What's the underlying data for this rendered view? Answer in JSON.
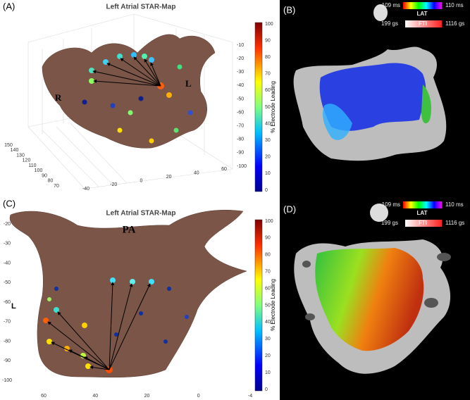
{
  "panels": [
    {
      "label": "(A)",
      "title": "Left Atrial STAR-Map",
      "orientation_labels": [
        "R",
        "L"
      ],
      "colorbar": {
        "label": "% Electrode Leading",
        "ticks": [
          100,
          90,
          80,
          70,
          60,
          50,
          40,
          30,
          20,
          10,
          0
        ]
      },
      "axis_ticks": {
        "vertical": [
          "-10",
          "-20",
          "-30",
          "-40",
          "-50",
          "-60",
          "-70",
          "-80",
          "-90",
          "-100"
        ],
        "depth": [
          "150",
          "140",
          "130",
          "120",
          "110",
          "100",
          "90",
          "80",
          "70"
        ],
        "horizontal": [
          "-40",
          "-20",
          "0",
          "20",
          "40",
          "60"
        ]
      }
    },
    {
      "label": "(B)",
      "lat": {
        "min": "-109 ms",
        "name": "LAT",
        "max": "110 ms"
      },
      "fti": {
        "min": "199 gs",
        "name": "FTI",
        "max": "1116 gs"
      }
    },
    {
      "label": "(C)",
      "title": "Left Atrial STAR-Map",
      "orientation_labels": [
        "PA",
        "L"
      ],
      "colorbar": {
        "label": "% Electrode Leading",
        "ticks": [
          100,
          90,
          80,
          70,
          60,
          50,
          40,
          30,
          20,
          10,
          0
        ]
      },
      "axis_ticks": {
        "vertical": [
          "-20",
          "-30",
          "-40",
          "-50",
          "-60",
          "-70",
          "-80",
          "-90",
          "-100"
        ],
        "horizontal": [
          "60",
          "40",
          "20",
          "0",
          "-4"
        ]
      }
    },
    {
      "label": "(D)",
      "lat": {
        "min": "-109 ms",
        "name": "LAT",
        "max": "110 ms"
      },
      "fti": {
        "min": "199 gs",
        "name": "FTI",
        "max": "1116 gs"
      }
    }
  ]
}
